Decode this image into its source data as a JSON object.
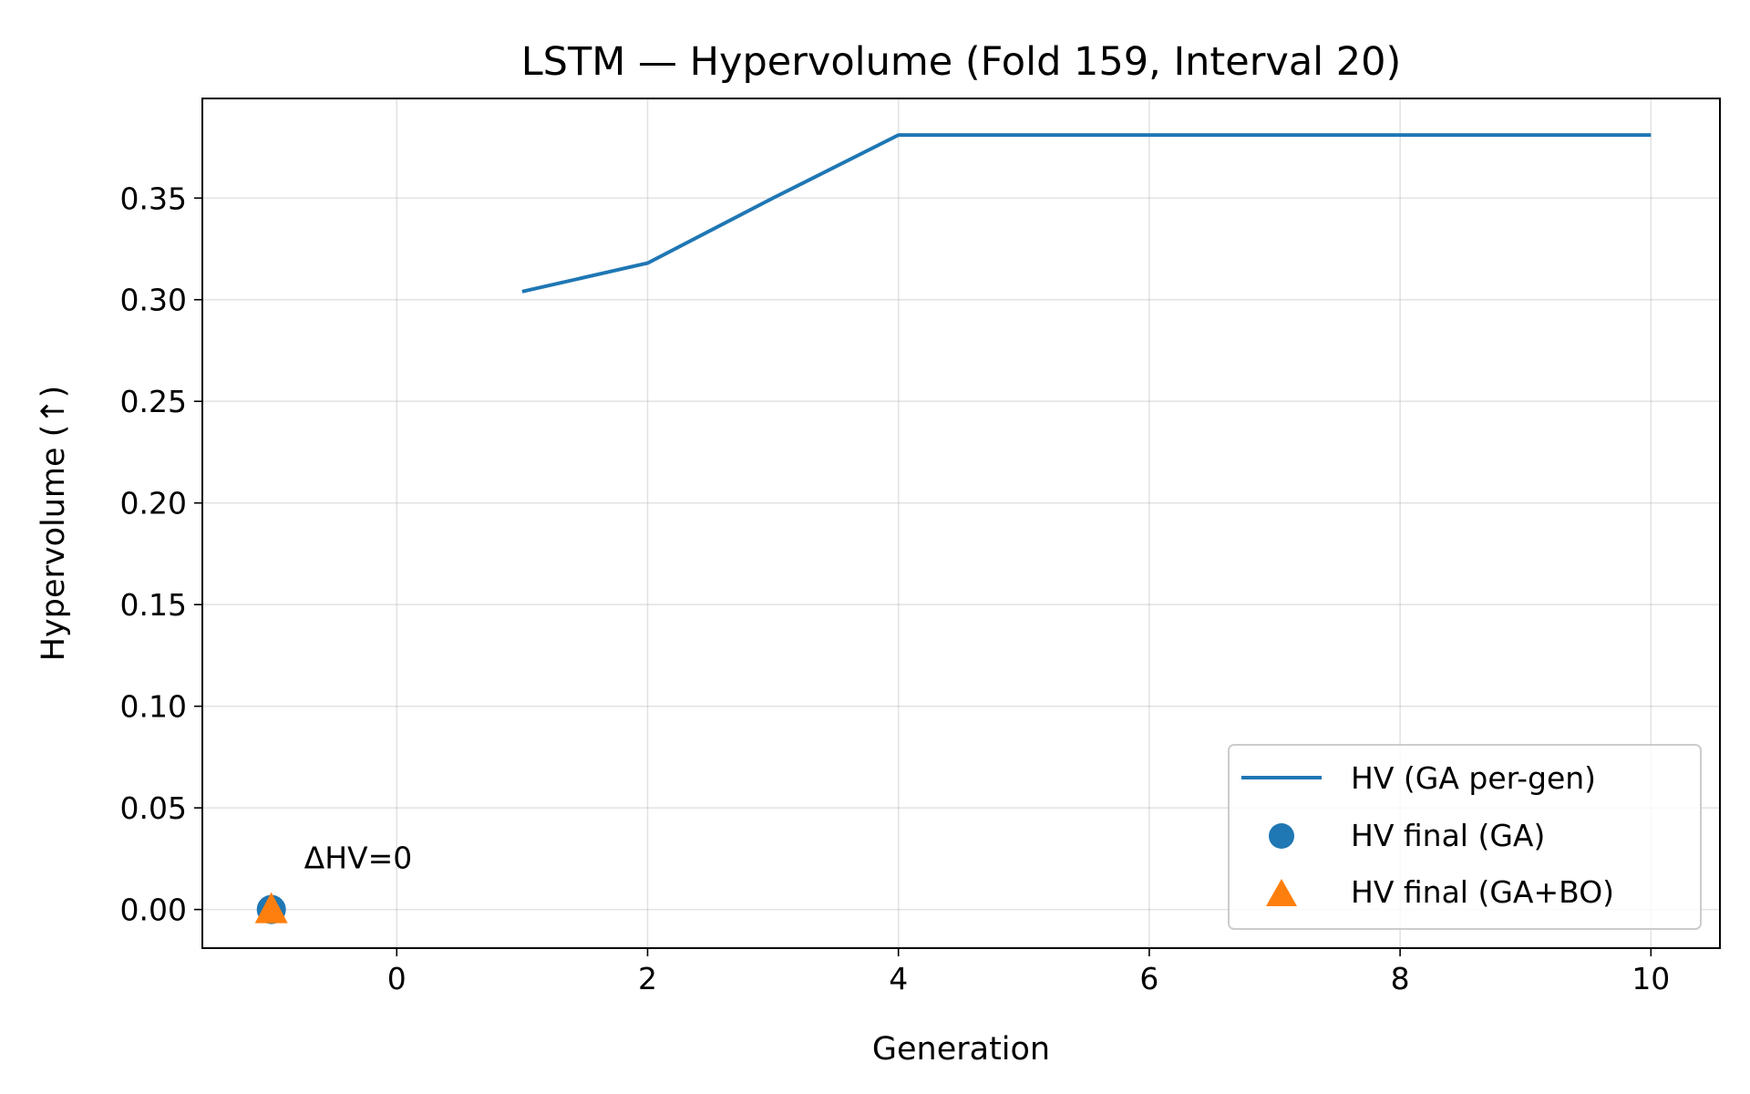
{
  "chart_data": {
    "type": "line",
    "title": "LSTM — Hypervolume (Fold 159, Interval 20)",
    "xlabel": "Generation",
    "ylabel": "Hypervolume (↑)",
    "xlim": [
      -1.55,
      10.55
    ],
    "ylim": [
      -0.019,
      0.399
    ],
    "xticks": [
      0,
      2,
      4,
      6,
      8,
      10
    ],
    "xtick_labels": [
      "0",
      "2",
      "4",
      "6",
      "8",
      "10"
    ],
    "yticks": [
      0.0,
      0.05,
      0.1,
      0.15,
      0.2,
      0.25,
      0.3,
      0.35
    ],
    "ytick_labels": [
      "0.00",
      "0.05",
      "0.10",
      "0.15",
      "0.20",
      "0.25",
      "0.30",
      "0.35"
    ],
    "grid": true,
    "legend_position": "lower-right",
    "series": [
      {
        "name": "HV (GA per-gen)",
        "kind": "line",
        "color": "#1f77b4",
        "x": [
          1,
          2,
          3,
          4,
          5,
          6,
          7,
          8,
          9,
          10
        ],
        "y": [
          0.304,
          0.318,
          0.35,
          0.381,
          0.381,
          0.381,
          0.381,
          0.381,
          0.381,
          0.381
        ]
      },
      {
        "name": "HV final (GA)",
        "kind": "scatter-circle",
        "color": "#1f77b4",
        "x": [
          -1
        ],
        "y": [
          0.0
        ]
      },
      {
        "name": "HV final (GA+BO)",
        "kind": "scatter-triangle",
        "color": "#ff7f0e",
        "x": [
          -1
        ],
        "y": [
          0.0
        ]
      }
    ],
    "annotations": [
      {
        "text": "ΔHV=0",
        "x": -1,
        "y": 0.0
      }
    ]
  }
}
